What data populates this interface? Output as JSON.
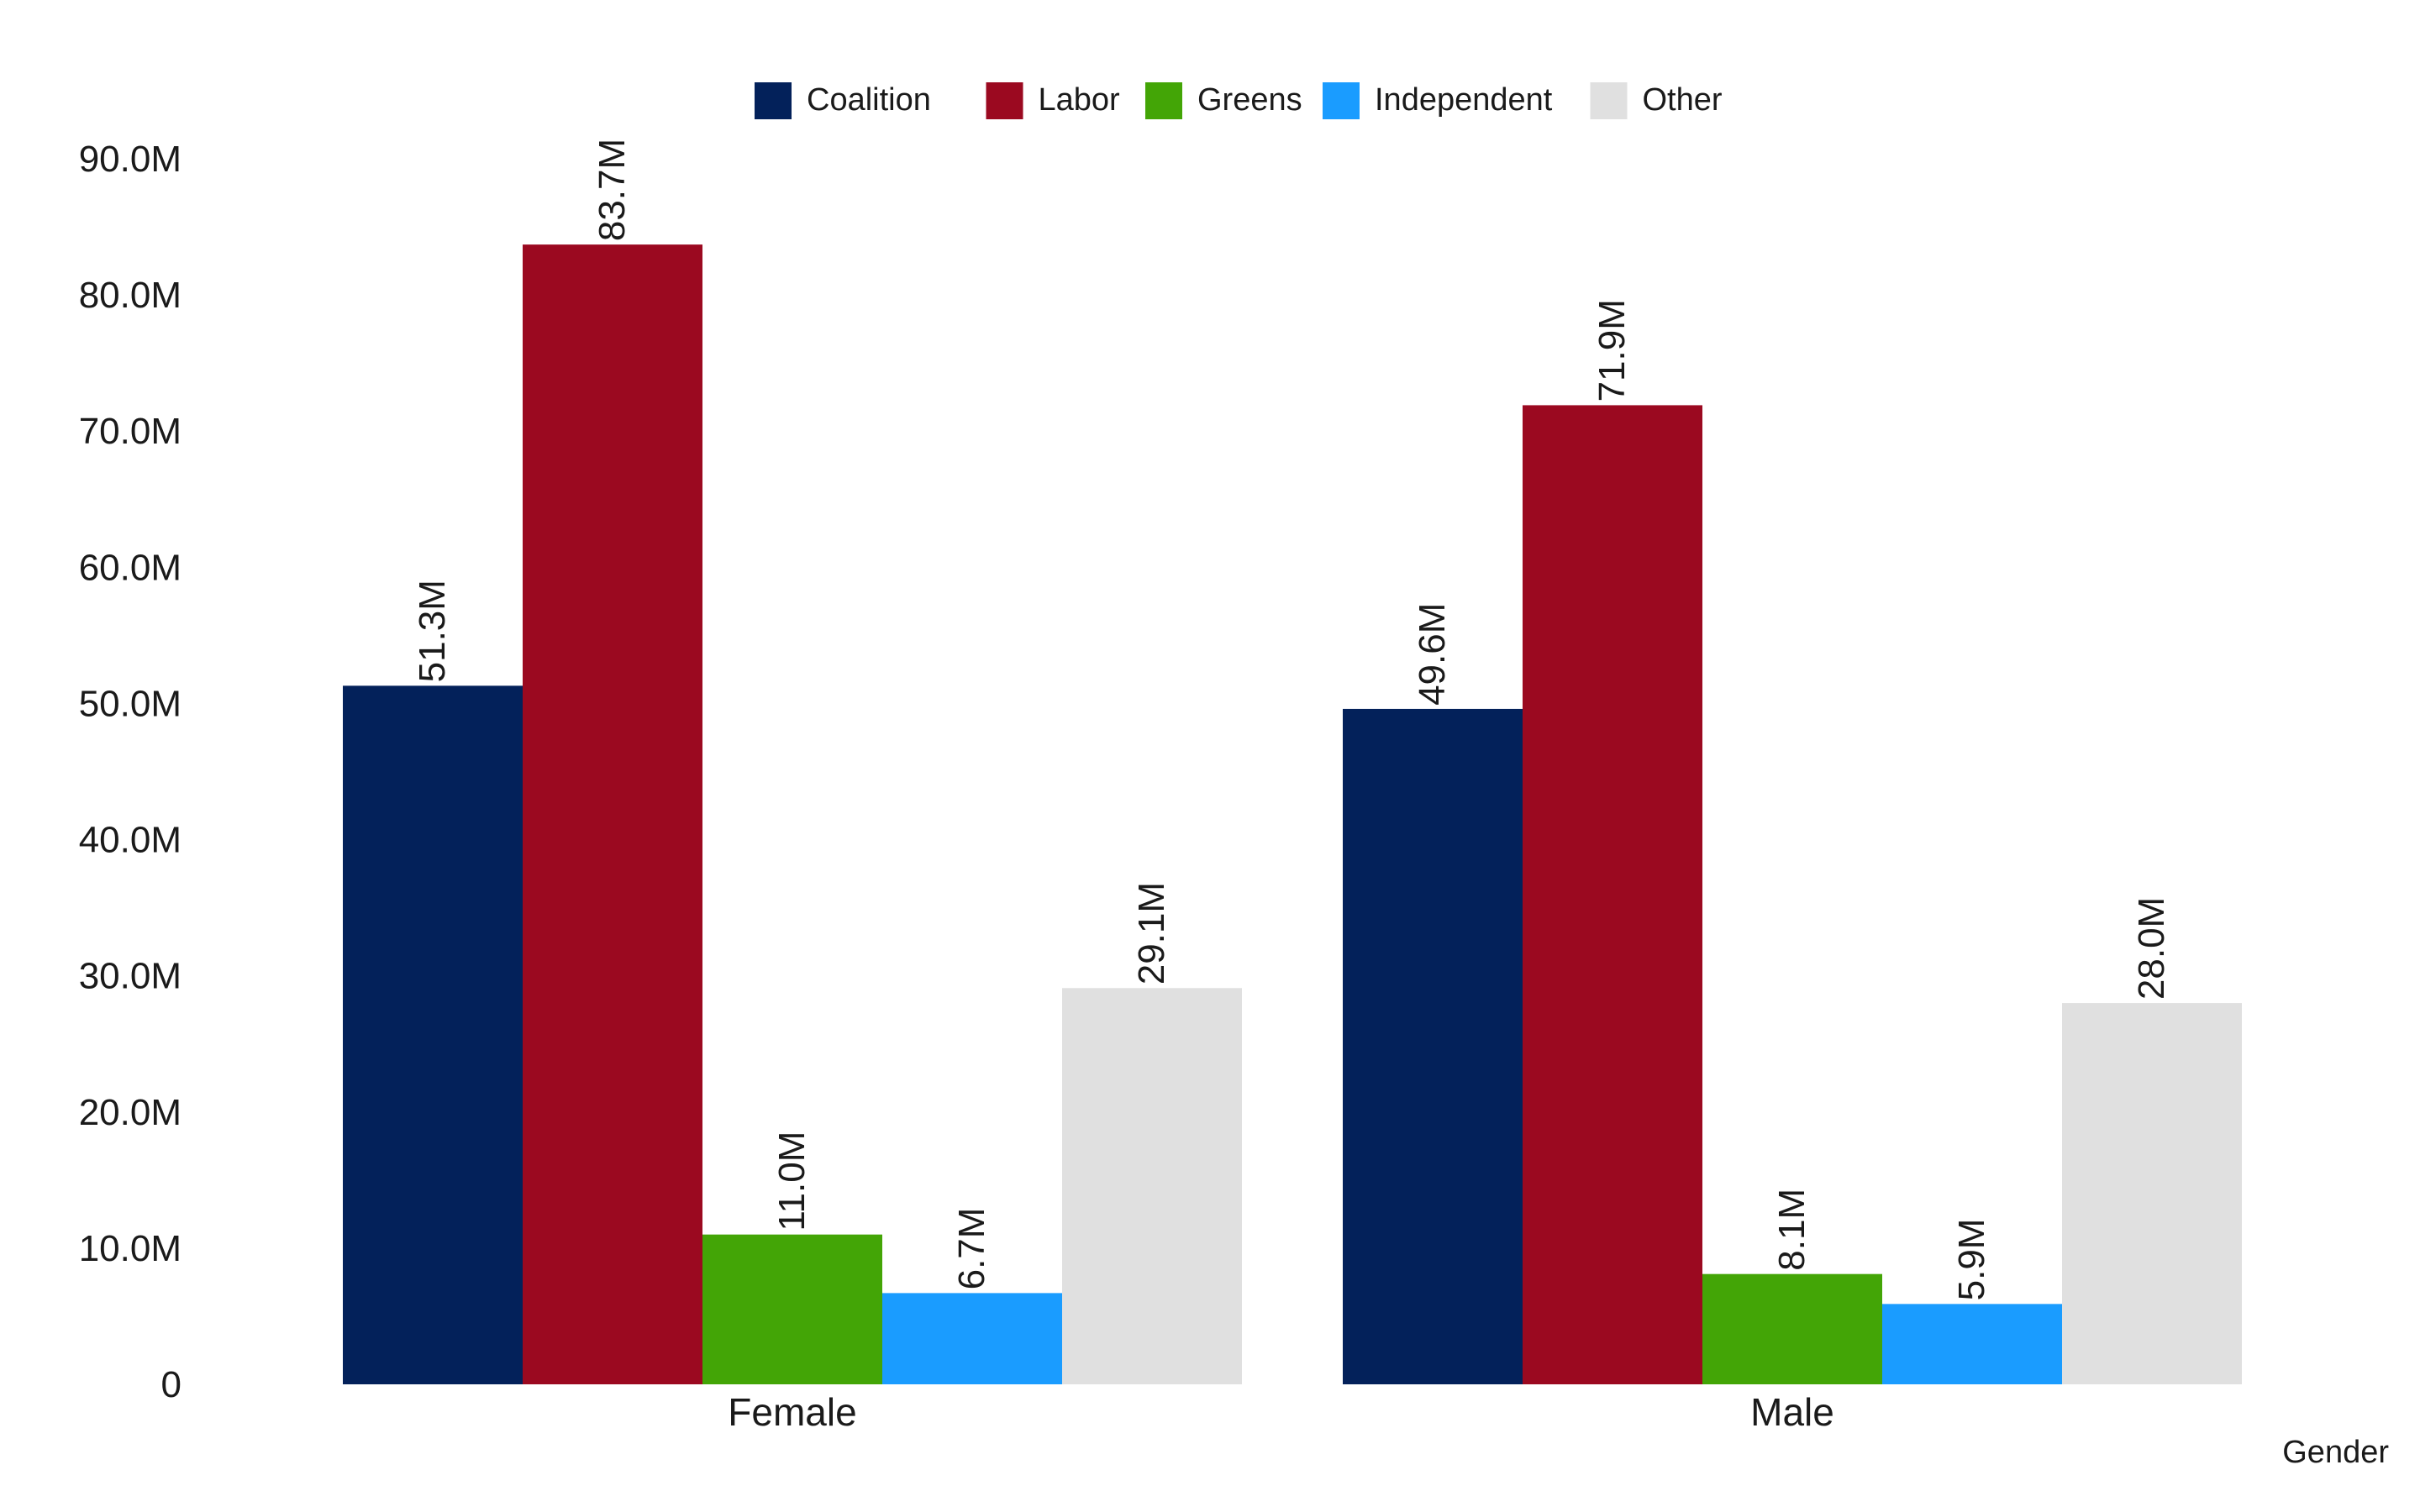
{
  "chart_data": {
    "type": "bar",
    "xlabel": "Gender",
    "ylabel": "",
    "categories": [
      "Female",
      "Male"
    ],
    "series": [
      {
        "name": "Coalition",
        "color": "#03215a",
        "values": [
          51.3,
          49.6
        ],
        "labels": [
          "51.3M",
          "49.6M"
        ]
      },
      {
        "name": "Labor",
        "color": "#9b0920",
        "values": [
          83.7,
          71.9
        ],
        "labels": [
          "83.7M",
          "71.9M"
        ]
      },
      {
        "name": "Greens",
        "color": "#43a506",
        "values": [
          11.0,
          8.1
        ],
        "labels": [
          "11.0M",
          "8.1M"
        ]
      },
      {
        "name": "Independent",
        "color": "#1a9cff",
        "values": [
          6.7,
          5.9
        ],
        "labels": [
          "6.7M",
          "5.9M"
        ]
      },
      {
        "name": "Other",
        "color": "#e0e0e0",
        "values": [
          29.1,
          28.0
        ],
        "labels": [
          "29.1M",
          "28.0M"
        ]
      }
    ],
    "ylim": [
      0,
      90
    ],
    "yticks": [
      0,
      10,
      20,
      30,
      40,
      50,
      60,
      70,
      80,
      90
    ],
    "ytick_labels": [
      "0",
      "10.0M",
      "20.0M",
      "30.0M",
      "40.0M",
      "50.0M",
      "60.0M",
      "70.0M",
      "80.0M",
      "90.0M"
    ],
    "legend_position": "top-center",
    "grid": false
  }
}
